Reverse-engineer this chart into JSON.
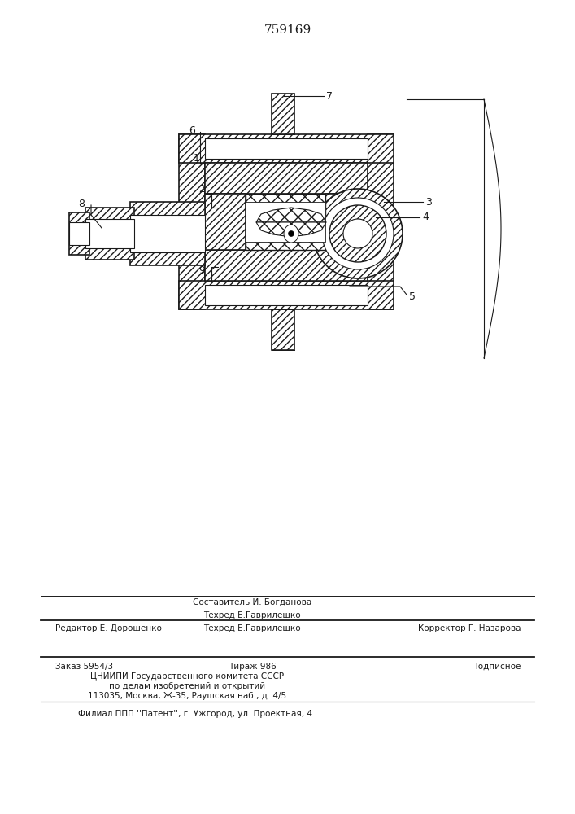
{
  "patent_number": "759169",
  "bg": "#ffffff",
  "lc": "#1a1a1a",
  "fig_w": 7.07,
  "fig_h": 10.0,
  "footer": {
    "составитель": "Составитель И. Богданова",
    "техред": "Техред Е.Гаврилешко",
    "редактор": "Редактор Е. Дорошенко",
    "корректор": "Корректор Г. Назарова",
    "заказ": "Заказ 5954/3",
    "тираж": "Тираж 986",
    "подписное": "Подписное",
    "цниипи1": "ЦНИИПИ Государственного комитета СССР",
    "цниипи2": "по делам изобретений и открытий",
    "цниипи3": "113035, Москва, Ж-35, Раушская наб., д. 4/5",
    "филиал": "Филиал ППП ''Патент'', г. Ужгород, ул. Проектная, 4"
  }
}
